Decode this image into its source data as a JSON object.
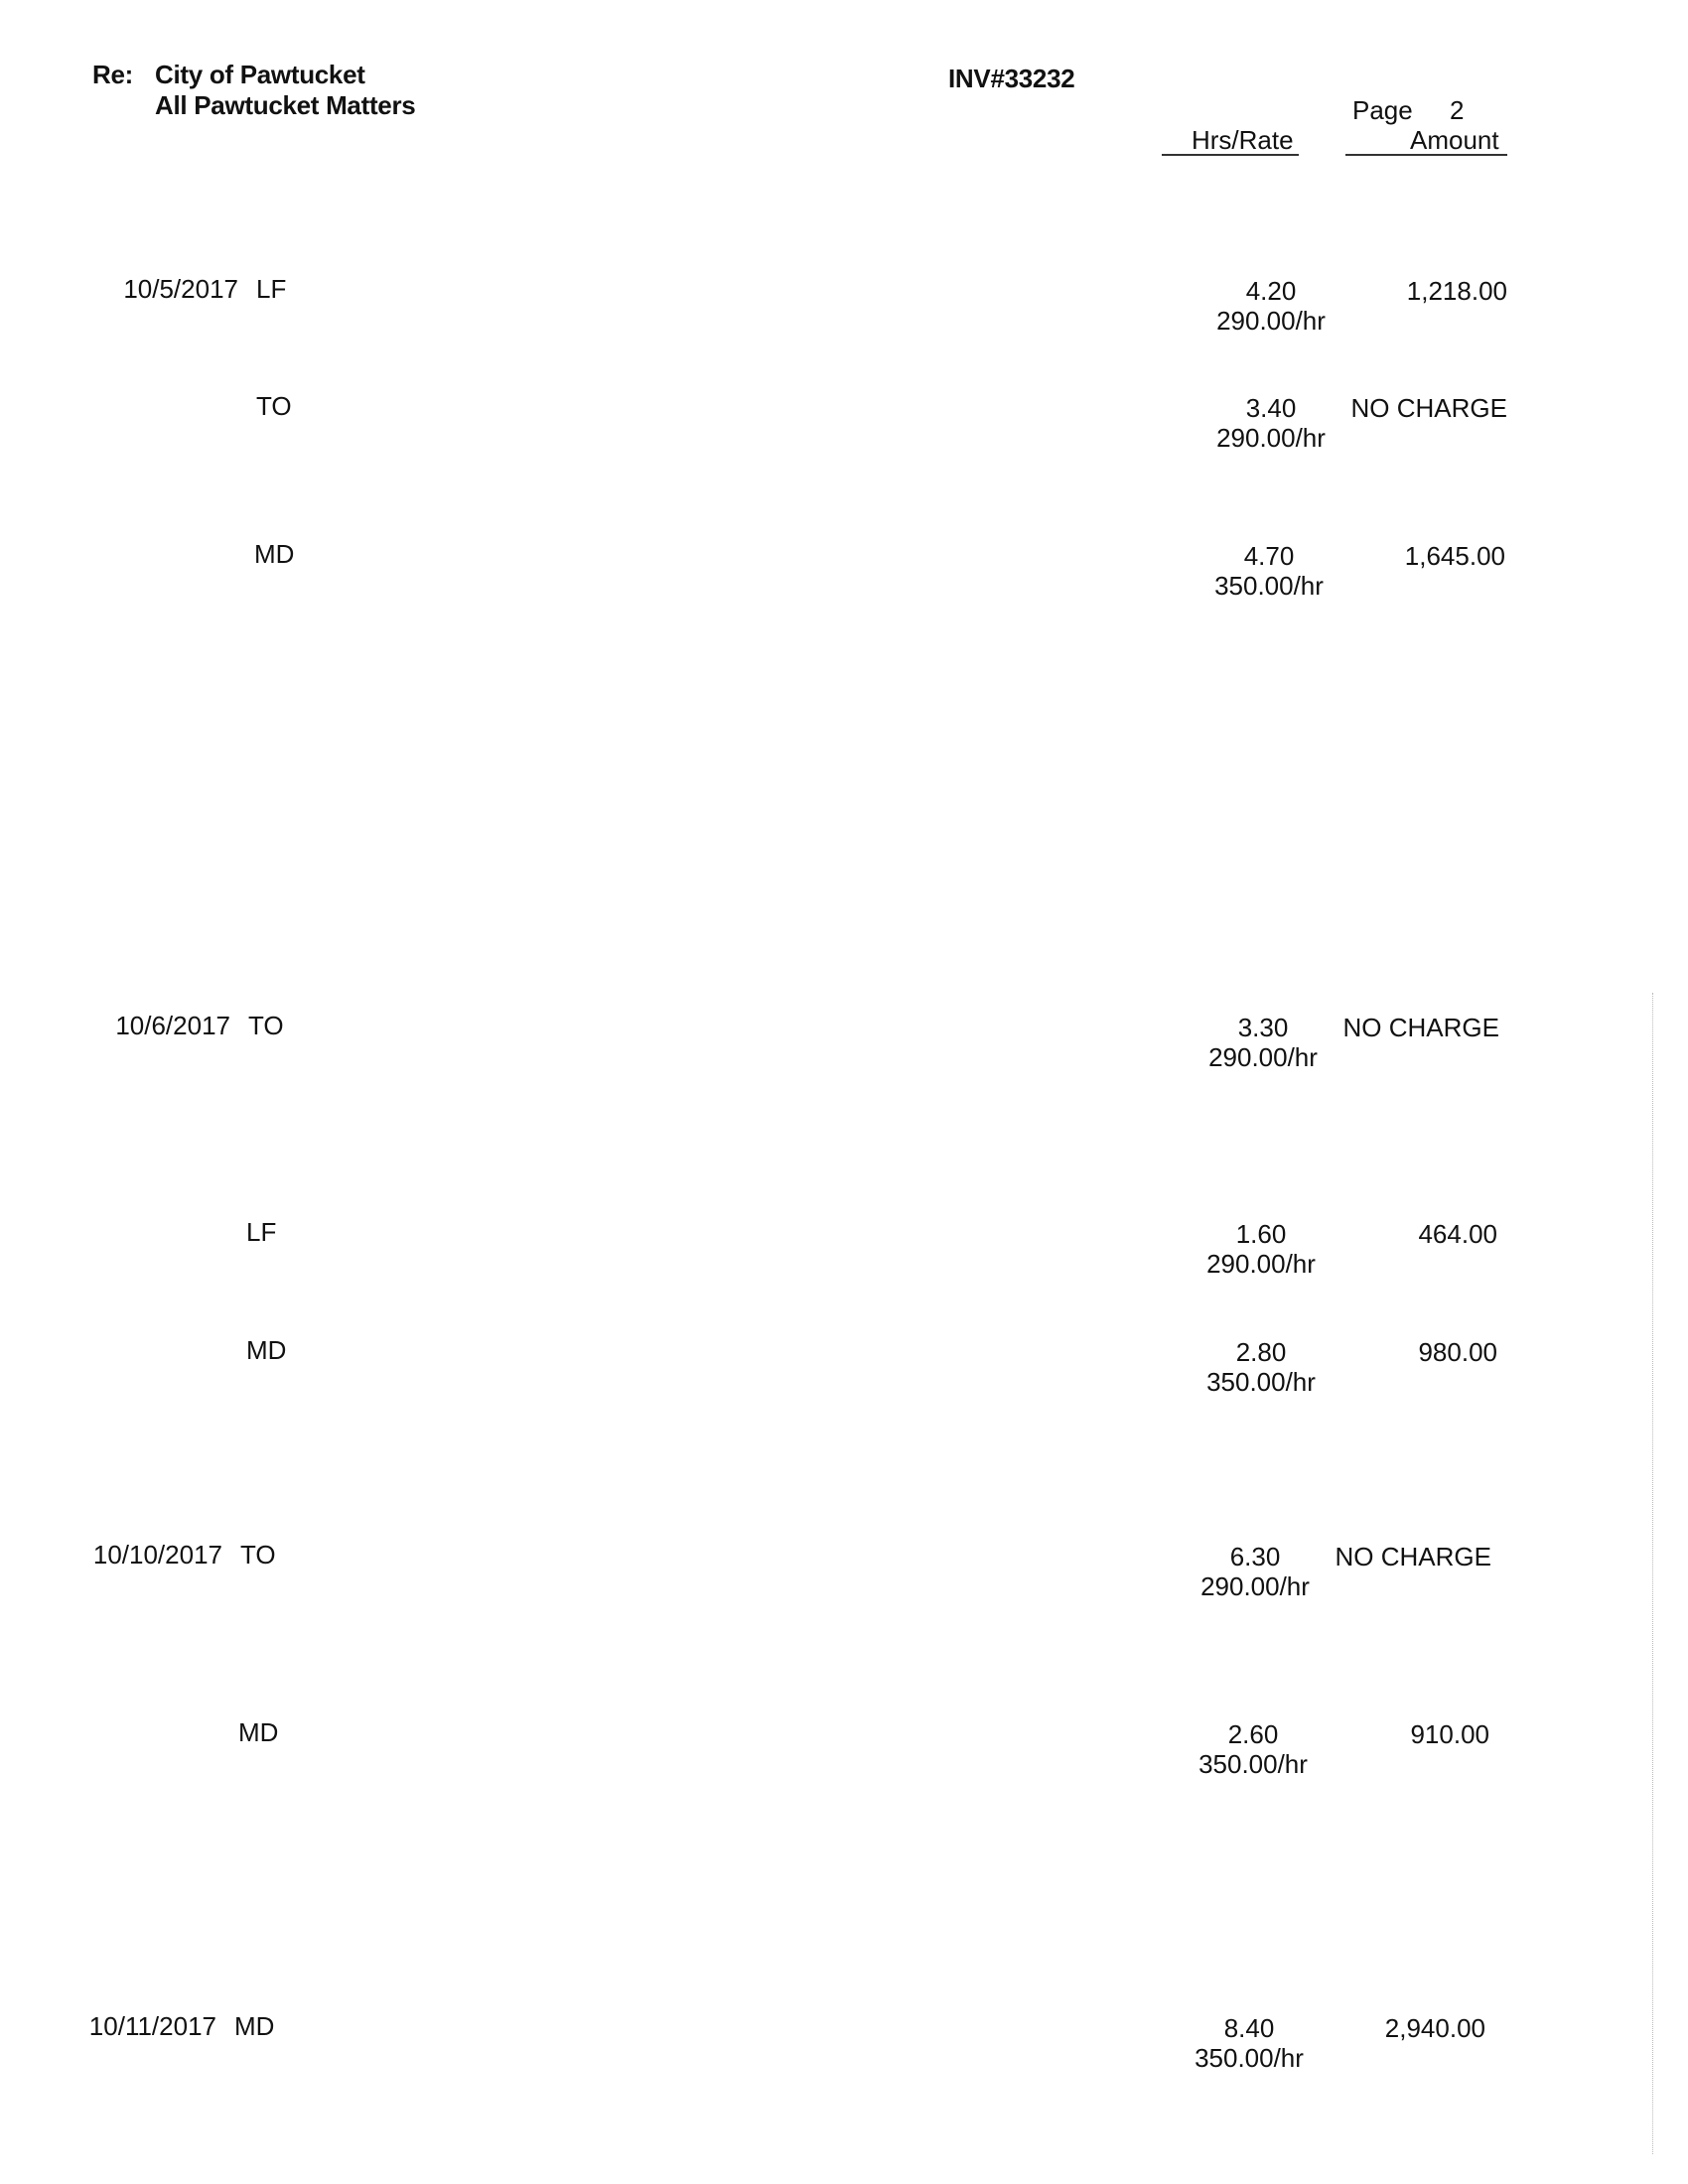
{
  "header": {
    "re_label": "Re:",
    "client": "City of Pawtucket",
    "matter": "All Pawtucket Matters",
    "invoice": "INV#33232",
    "page_label": "Page",
    "page_number": "2",
    "col_hrs_rate": "Hrs/Rate",
    "col_amount": "Amount"
  },
  "entries": [
    {
      "date": "10/5/2017",
      "code": "LF",
      "hours": "4.20",
      "rate": "290.00/hr",
      "amount": "1,218.00"
    },
    {
      "date": "",
      "code": "TO",
      "hours": "3.40",
      "rate": "290.00/hr",
      "amount": "NO CHARGE"
    },
    {
      "date": "",
      "code": "MD",
      "hours": "4.70",
      "rate": "350.00/hr",
      "amount": "1,645.00"
    },
    {
      "date": "10/6/2017",
      "code": "TO",
      "hours": "3.30",
      "rate": "290.00/hr",
      "amount": "NO CHARGE"
    },
    {
      "date": "",
      "code": "LF",
      "hours": "1.60",
      "rate": "290.00/hr",
      "amount": "464.00"
    },
    {
      "date": "",
      "code": "MD",
      "hours": "2.80",
      "rate": "350.00/hr",
      "amount": "980.00"
    },
    {
      "date": "10/10/2017",
      "code": "TO",
      "hours": "6.30",
      "rate": "290.00/hr",
      "amount": "NO CHARGE"
    },
    {
      "date": "",
      "code": "MD",
      "hours": "2.60",
      "rate": "350.00/hr",
      "amount": "910.00"
    },
    {
      "date": "10/11/2017",
      "code": "MD",
      "hours": "8.40",
      "rate": "350.00/hr",
      "amount": "2,940.00"
    }
  ]
}
